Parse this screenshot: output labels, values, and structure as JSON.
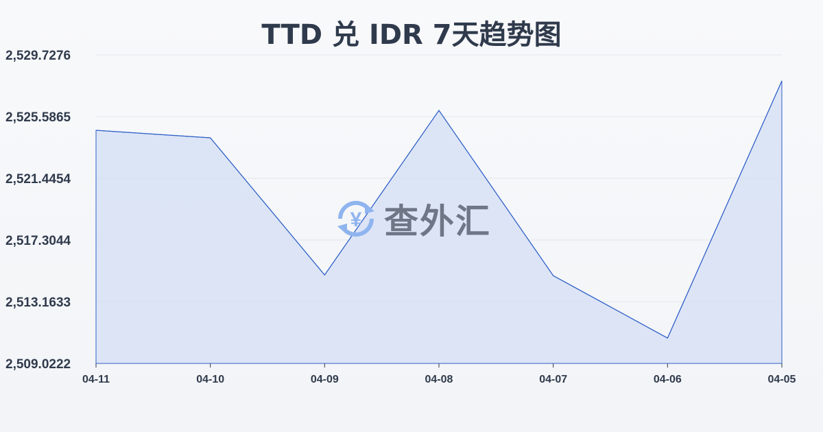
{
  "title": "TTD 兑 IDR 7天趋势图",
  "watermark": {
    "text": "查外汇",
    "icon": "yen-exchange-icon"
  },
  "colors": {
    "line": "#2f5fc8",
    "fill": "#d6e0f5",
    "text": "#2f3a4c"
  },
  "chart_data": {
    "type": "area",
    "title": "TTD 兑 IDR 7天趋势图",
    "categories": [
      "04-11",
      "04-10",
      "04-09",
      "04-08",
      "04-07",
      "04-06",
      "04-05"
    ],
    "values": [
      2524.666,
      2524.16,
      2514.958,
      2526.001,
      2514.912,
      2510.725,
      2527.979
    ],
    "ylim": [
      2509.0222,
      2529.7276
    ],
    "yticks": [
      "2,509.0222",
      "2,513.1633",
      "2,517.3044",
      "2,521.4454",
      "2,525.5865",
      "2,529.7276"
    ],
    "grid": true
  }
}
